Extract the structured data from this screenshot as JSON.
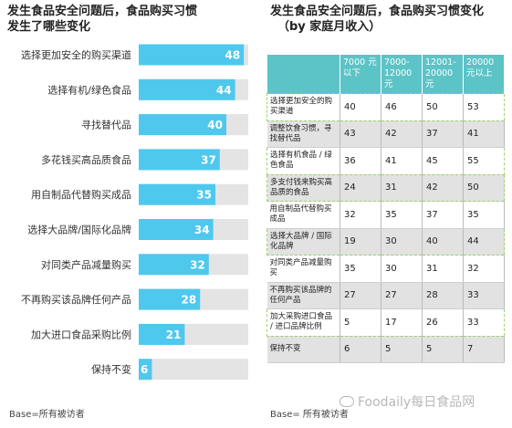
{
  "colors": {
    "bar": "#4fc8ee",
    "bar_track": "#e4e4e4",
    "table_header": "#5cc3c6",
    "highlight_border": "#9ad26a"
  },
  "left": {
    "title_line1": "发生食品安全问题后，食品购买习惯",
    "title_line2": "发生了哪些变化",
    "base_note": "Base=所有被访者"
  },
  "right": {
    "title_line1": "发生食品安全问题后，食品购买习惯变化",
    "title_line2": "（by 家庭月收入）",
    "base_note": "Base= 所有被访者"
  },
  "watermark": "Foodaily每日食品网",
  "chart_data": [
    {
      "type": "bar",
      "orientation": "horizontal",
      "categories": [
        "选择更加安全的购买渠道",
        "选择有机/绿色食品",
        "寻找替代品",
        "多花钱买高品质食品",
        "用自制品代替购买成品",
        "选择大品牌/国际化品牌",
        "对同类产品减量购买",
        "不再购买该品牌任何产品",
        "加大进口食品采购比例",
        "保持不变"
      ],
      "values": [
        48,
        44,
        40,
        37,
        35,
        34,
        32,
        28,
        21,
        6
      ],
      "xlim": [
        0,
        50
      ]
    },
    {
      "type": "table",
      "columns": [
        "",
        "7000 元以下",
        "7000-12000 元",
        "12001-20000 元",
        "20000 元以上"
      ],
      "rows": [
        {
          "label": "选择更加安全的购买渠道",
          "values": [
            40,
            46,
            50,
            53
          ],
          "shaded": false,
          "highlight": true
        },
        {
          "label": "调整饮食习惯，寻找替代品",
          "values": [
            43,
            42,
            37,
            41
          ],
          "shaded": true,
          "highlight": false
        },
        {
          "label": "选择有机食品 / 绿色食品",
          "values": [
            36,
            41,
            45,
            55
          ],
          "shaded": false,
          "highlight": true
        },
        {
          "label": "多支付钱来购买高品质的食品",
          "values": [
            24,
            31,
            42,
            50
          ],
          "shaded": true,
          "highlight": true
        },
        {
          "label": "用自制品代替购买成品",
          "values": [
            32,
            35,
            37,
            35
          ],
          "shaded": false,
          "highlight": false
        },
        {
          "label": "选择大品牌 / 国际化品牌",
          "values": [
            19,
            30,
            40,
            44
          ],
          "shaded": true,
          "highlight": true
        },
        {
          "label": "对同类产品减量购买",
          "values": [
            35,
            30,
            31,
            32
          ],
          "shaded": false,
          "highlight": false
        },
        {
          "label": "不再购买该品牌的任何产品",
          "values": [
            27,
            27,
            28,
            33
          ],
          "shaded": true,
          "highlight": false
        },
        {
          "label": "加大采购进口食品 / 进口品牌比例",
          "values": [
            5,
            17,
            26,
            33
          ],
          "shaded": false,
          "highlight": true
        },
        {
          "label": "保持不变",
          "values": [
            6,
            5,
            5,
            7
          ],
          "shaded": true,
          "highlight": false
        }
      ]
    }
  ]
}
